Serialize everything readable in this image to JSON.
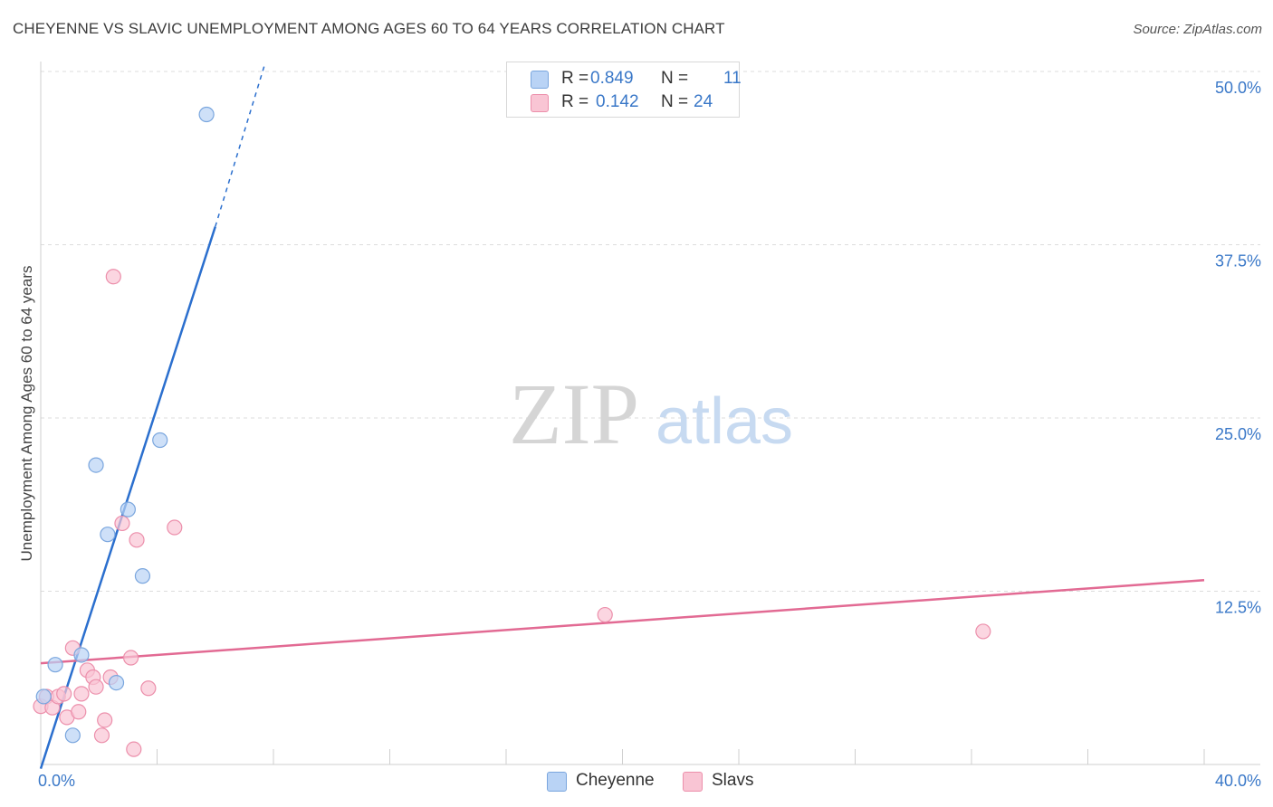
{
  "header": {
    "title": "CHEYENNE VS SLAVIC UNEMPLOYMENT AMONG AGES 60 TO 64 YEARS CORRELATION CHART",
    "source": "Source: ZipAtlas.com"
  },
  "watermark": {
    "zip": "ZIP",
    "atlas": "atlas"
  },
  "legend_top": {
    "rows": [
      {
        "r_label": "R =",
        "r_value": "0.849",
        "n_label": "N =",
        "n_value": "11",
        "color": "#b9d3f5",
        "border": "#7aa6de"
      },
      {
        "r_label": "R =",
        "r_value": "0.142",
        "n_label": "N =",
        "n_value": "24",
        "color": "#f9c5d4",
        "border": "#ec8fab"
      }
    ]
  },
  "legend_bottom": {
    "items": [
      {
        "label": "Cheyenne",
        "color": "#b9d3f5",
        "border": "#7aa6de"
      },
      {
        "label": "Slavs",
        "color": "#f9c5d4",
        "border": "#ec8fab"
      }
    ]
  },
  "chart_data": {
    "type": "scatter",
    "title": "CHEYENNE VS SLAVIC UNEMPLOYMENT AMONG AGES 60 TO 64 YEARS CORRELATION CHART",
    "xlabel": "",
    "ylabel": "Unemployment Among Ages 60 to 64 years",
    "xlim": [
      0,
      40
    ],
    "ylim": [
      0,
      50
    ],
    "x_tick_labels": [
      "0.0%",
      "40.0%"
    ],
    "y_ticks": [
      12.5,
      25.0,
      37.5,
      50.0
    ],
    "y_tick_labels": [
      "12.5%",
      "25.0%",
      "37.5%",
      "50.0%"
    ],
    "grid": "horizontal dashed",
    "legend": "top-center",
    "series": [
      {
        "name": "Cheyenne",
        "color": "#7aa6de",
        "fill": "#b9d3f5",
        "line_color": "#2b6fce",
        "points": [
          [
            0.1,
            4.9
          ],
          [
            0.5,
            7.2
          ],
          [
            1.1,
            2.1
          ],
          [
            1.4,
            7.9
          ],
          [
            1.9,
            21.6
          ],
          [
            2.3,
            16.6
          ],
          [
            2.6,
            5.9
          ],
          [
            3.0,
            18.4
          ],
          [
            3.5,
            13.6
          ],
          [
            4.1,
            23.4
          ],
          [
            5.7,
            46.9
          ]
        ],
        "trend": {
          "x0": 0.0,
          "y0": -0.3,
          "x1": 6.0,
          "y1": 38.8,
          "dashed_to_x": 7.7,
          "dashed_to_y": 50.5
        }
      },
      {
        "name": "Slavs",
        "color": "#ec8fab",
        "fill": "#f9c5d4",
        "line_color": "#e26a93",
        "points": [
          [
            0.0,
            4.2
          ],
          [
            0.2,
            4.9
          ],
          [
            0.4,
            4.1
          ],
          [
            0.6,
            4.9
          ],
          [
            0.8,
            5.1
          ],
          [
            0.9,
            3.4
          ],
          [
            1.1,
            8.4
          ],
          [
            1.3,
            3.8
          ],
          [
            1.4,
            5.1
          ],
          [
            1.6,
            6.8
          ],
          [
            1.8,
            6.3
          ],
          [
            1.9,
            5.6
          ],
          [
            2.1,
            2.1
          ],
          [
            2.2,
            3.2
          ],
          [
            2.4,
            6.3
          ],
          [
            2.5,
            35.2
          ],
          [
            2.8,
            17.4
          ],
          [
            3.1,
            7.7
          ],
          [
            3.2,
            1.1
          ],
          [
            3.3,
            16.2
          ],
          [
            3.7,
            5.5
          ],
          [
            4.6,
            17.1
          ],
          [
            19.4,
            10.8
          ],
          [
            32.4,
            9.6
          ]
        ],
        "trend": {
          "x0": 0.0,
          "y0": 7.3,
          "x1": 40.0,
          "y1": 13.3
        }
      }
    ]
  }
}
